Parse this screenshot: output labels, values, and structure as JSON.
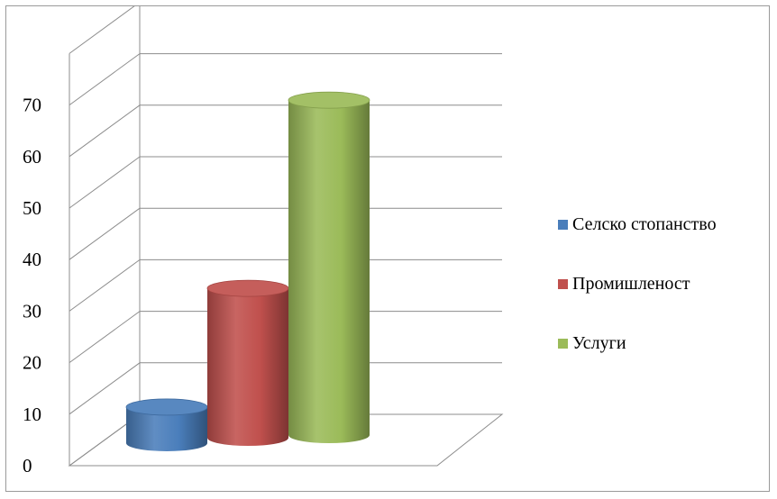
{
  "chart_data": {
    "type": "bar",
    "style": "3d-cylinder",
    "categories": [
      "Селско стопанство",
      "Промишленост",
      "Услуги"
    ],
    "values": [
      7,
      29,
      65
    ],
    "colors": [
      "#4a7ebb",
      "#c0504d",
      "#9bbb59"
    ],
    "ylim": [
      0,
      70
    ],
    "yticks": [
      0,
      10,
      20,
      30,
      40,
      50,
      60,
      70
    ],
    "grid": true,
    "legend_position": "right",
    "title": "",
    "xlabel": "",
    "ylabel": ""
  },
  "legend": {
    "items": [
      {
        "label": "Селско стопанство",
        "color": "#4a7ebb"
      },
      {
        "label": "Промишленост",
        "color": "#c0504d"
      },
      {
        "label": "Услуги",
        "color": "#9bbb59"
      }
    ]
  }
}
